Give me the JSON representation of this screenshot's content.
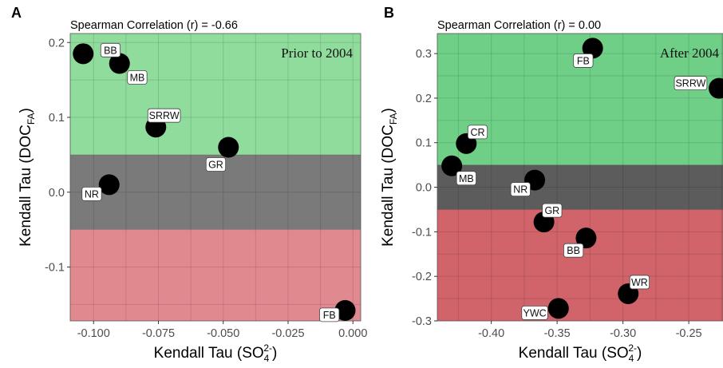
{
  "chart_data": [
    {
      "type": "scatter",
      "panel_label": "A",
      "subtitle": "Spearman Correlation (r) = -0.66",
      "annotation": "Prior to 2004",
      "xlabel": {
        "text": "Kendall Tau (SO",
        "sub": "4",
        "sup": "2-",
        "tail": ")"
      },
      "ylabel": {
        "text": "Kendall Tau (DOC",
        "sub": "FA",
        "tail": ")"
      },
      "xlim": [
        -0.109,
        0.003
      ],
      "ylim": [
        -0.172,
        0.212
      ],
      "xticks": [
        -0.1,
        -0.075,
        -0.05,
        -0.025,
        0.0
      ],
      "xtick_labels": [
        "-0.100",
        "-0.075",
        "-0.050",
        "-0.025",
        "0.000"
      ],
      "yticks": [
        -0.1,
        0.0,
        0.1,
        0.2
      ],
      "ytick_labels": [
        "-0.1",
        "0.0",
        "0.1",
        "0.2"
      ],
      "bands": [
        {
          "from": 0.05,
          "to": 0.212,
          "color": "#8fdc9c"
        },
        {
          "from": -0.05,
          "to": 0.05,
          "color": "#7a7a7a"
        },
        {
          "from": -0.172,
          "to": -0.05,
          "color": "#e08a8f"
        }
      ],
      "points": [
        {
          "label": "BB",
          "x": -0.104,
          "y": 0.185
        },
        {
          "label": "MB",
          "x": -0.09,
          "y": 0.172
        },
        {
          "label": "SRRW",
          "x": -0.076,
          "y": 0.087
        },
        {
          "label": "GR",
          "x": -0.048,
          "y": 0.06
        },
        {
          "label": "NR",
          "x": -0.094,
          "y": 0.01
        },
        {
          "label": "FB",
          "x": -0.003,
          "y": -0.158
        }
      ]
    },
    {
      "type": "scatter",
      "panel_label": "B",
      "subtitle": "Spearman Correlation (r) = 0.00",
      "annotation": "After 2004",
      "xlabel": {
        "text": "Kendall Tau (SO",
        "sub": "4",
        "sup": "2-",
        "tail": ")"
      },
      "ylabel": {
        "text": "Kendall Tau (DOC",
        "sub": "FA",
        "tail": ")"
      },
      "xlim": [
        -0.441,
        -0.224
      ],
      "ylim": [
        -0.3,
        0.345
      ],
      "xticks": [
        -0.4,
        -0.35,
        -0.3,
        -0.25
      ],
      "xtick_labels": [
        "-0.40",
        "-0.35",
        "-0.30",
        "-0.25"
      ],
      "yticks": [
        -0.3,
        -0.2,
        -0.1,
        0.0,
        0.1,
        0.2,
        0.3
      ],
      "ytick_labels": [
        "-0.3",
        "-0.2",
        "-0.1",
        "0.0",
        "0.1",
        "0.2",
        "0.3"
      ],
      "bands": [
        {
          "from": 0.05,
          "to": 0.345,
          "color": "#6fcf86"
        },
        {
          "from": -0.05,
          "to": 0.05,
          "color": "#5c5c5c"
        },
        {
          "from": -0.3,
          "to": -0.05,
          "color": "#d0646a"
        }
      ],
      "points": [
        {
          "label": "FB",
          "x": -0.323,
          "y": 0.312
        },
        {
          "label": "SRRW",
          "x": -0.227,
          "y": 0.222
        },
        {
          "label": "CR",
          "x": -0.419,
          "y": 0.098
        },
        {
          "label": "MB",
          "x": -0.43,
          "y": 0.048
        },
        {
          "label": "NR",
          "x": -0.367,
          "y": 0.016
        },
        {
          "label": "GR",
          "x": -0.36,
          "y": -0.078
        },
        {
          "label": "BB",
          "x": -0.328,
          "y": -0.114
        },
        {
          "label": "WR",
          "x": -0.296,
          "y": -0.239
        },
        {
          "label": "YWC",
          "x": -0.349,
          "y": -0.272
        }
      ]
    }
  ]
}
